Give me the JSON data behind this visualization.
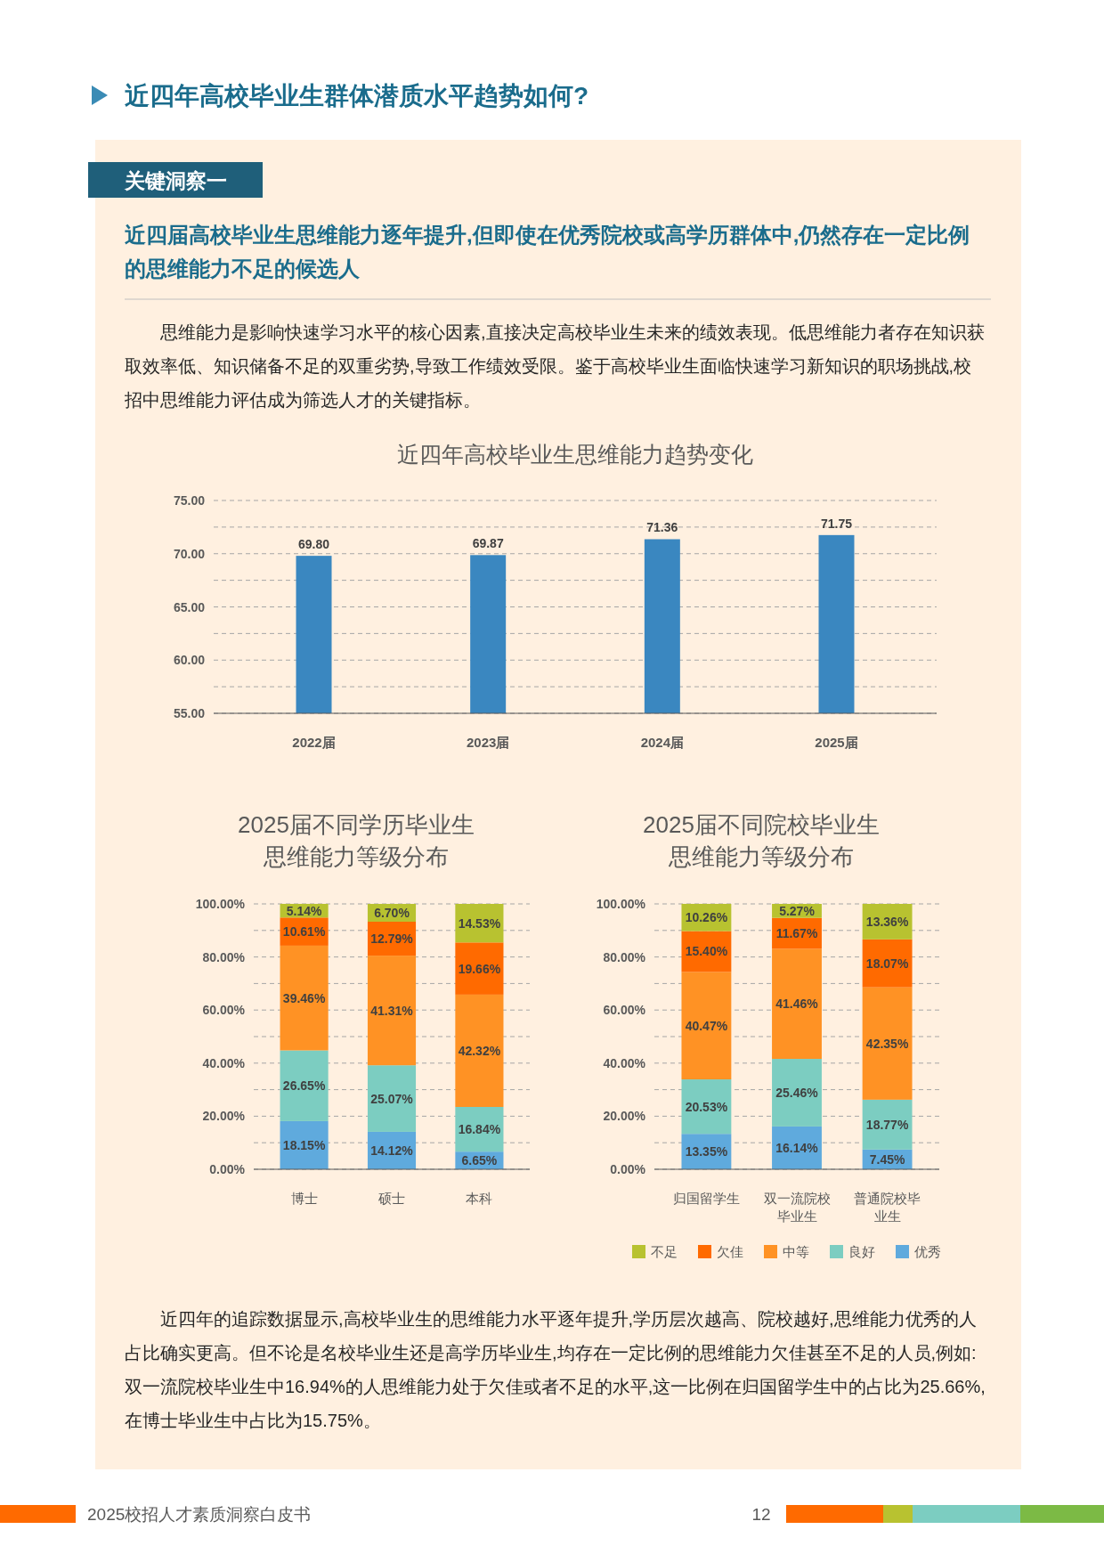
{
  "chart_data": [
    {
      "type": "bar",
      "title": "近四年高校毕业生思维能力趋势变化",
      "categories": [
        "2022届",
        "2023届",
        "2024届",
        "2025届"
      ],
      "values": [
        69.8,
        69.87,
        71.36,
        71.75
      ],
      "value_labels": [
        "69.80",
        "69.87",
        "71.36",
        "71.75"
      ],
      "color": "#3a87c0",
      "ylim": [
        55,
        75
      ],
      "yticks": [
        {
          "value": 55,
          "label": "55.00"
        },
        {
          "value": 57.5,
          "label": null
        },
        {
          "value": 60,
          "label": "60.00"
        },
        {
          "value": 62.5,
          "label": null
        },
        {
          "value": 65,
          "label": "65.00"
        },
        {
          "value": 67.5,
          "label": null
        },
        {
          "value": 70,
          "label": "70.00"
        },
        {
          "value": 72.5,
          "label": null
        },
        {
          "value": 75,
          "label": "75.00"
        }
      ],
      "grid": "y",
      "annotations": [
        "近四年高校毕业生群体潜质水平趋势如何?",
        "关键洞察一",
        "近四届高校毕业生思维能力逐年提升,但即使在优秀院校或高学历群体中,仍然存在一定比例的思维能力不足的候选人",
        "思维能力是影响快速学习水平的核心因素,直接决定高校毕业生未来的绩效表现。低思维能力者存在知识获取效率低、知识储备不足的双重劣势,导致工作绩效受限。鉴于高校毕业生面临快速学习新知识的职场挑战,校招中思维能力评估成为筛选人才的关键指标。",
        "近四年的追踪数据显示,高校毕业生的思维能力水平逐年提升,学历层次越高、院校越好,思维能力优秀的人占比确实更高。但不论是名校毕业生还是高学历毕业生,均存在一定比例的思维能力欠佳甚至不足的人员,例如:双一流院校毕业生中16.94%的人思维能力处于欠佳或者不足的水平,这一比例在归国留学生中的占比为25.66%,在博士毕业生中占比为15.75%。",
        "2025校招人才素质洞察白皮书",
        "12"
      ]
    },
    {
      "type": "bar",
      "stacked": true,
      "title": "2025届不同学历毕业生思维能力等级分布",
      "categories": [
        "博士",
        "硕士",
        "本科"
      ],
      "ylim": [
        0,
        100
      ],
      "yticks": [
        {
          "value": 0,
          "label": "0.00%"
        },
        {
          "value": 10,
          "label": null
        },
        {
          "value": 20,
          "label": "20.00%"
        },
        {
          "value": 30,
          "label": null
        },
        {
          "value": 40,
          "label": "40.00%"
        },
        {
          "value": 50,
          "label": null
        },
        {
          "value": 60,
          "label": "60.00%"
        },
        {
          "value": 70,
          "label": null
        },
        {
          "value": 80,
          "label": "80.00%"
        },
        {
          "value": 90,
          "label": null
        },
        {
          "value": 100,
          "label": "100.00%"
        }
      ],
      "grid": "y",
      "series": [
        {
          "color": "#5faadd",
          "values": [
            18.15,
            14.12,
            6.65
          ],
          "value_labels": [
            "18.15%",
            "14.12%",
            "6.65%"
          ]
        },
        {
          "color": "#7ccdc1",
          "values": [
            26.65,
            25.07,
            16.84
          ],
          "value_labels": [
            "26.65%",
            "25.07%",
            "16.84%"
          ]
        },
        {
          "color": "#ff9224",
          "values": [
            39.46,
            41.31,
            42.32
          ],
          "value_labels": [
            "39.46%",
            "41.31%",
            "42.32%"
          ]
        },
        {
          "color": "#ff6a00",
          "values": [
            10.61,
            12.79,
            19.66
          ],
          "value_labels": [
            "10.61%",
            "12.79%",
            "19.66%"
          ]
        },
        {
          "color": "#b8c230",
          "values": [
            5.14,
            6.7,
            14.53
          ],
          "value_labels": [
            "5.14%",
            "6.70%",
            "14.53%"
          ]
        }
      ]
    },
    {
      "type": "bar",
      "stacked": true,
      "title": "2025届不同院校毕业生思维能力等级分布",
      "categories": [
        "归国留学生",
        "双一流院校毕业生",
        "普通院校毕业生"
      ],
      "ylim": [
        0,
        100
      ],
      "yticks": [
        {
          "value": 0,
          "label": "0.00%"
        },
        {
          "value": 10,
          "label": null
        },
        {
          "value": 20,
          "label": "20.00%"
        },
        {
          "value": 30,
          "label": null
        },
        {
          "value": 40,
          "label": "40.00%"
        },
        {
          "value": 50,
          "label": null
        },
        {
          "value": 60,
          "label": "60.00%"
        },
        {
          "value": 70,
          "label": null
        },
        {
          "value": 80,
          "label": "80.00%"
        },
        {
          "value": 90,
          "label": null
        },
        {
          "value": 100,
          "label": "100.00%"
        }
      ],
      "grid": "y",
      "legend": "bottom",
      "series": [
        {
          "name": "优秀",
          "color": "#5faadd",
          "values": [
            13.35,
            16.14,
            7.45
          ],
          "value_labels": [
            "13.35%",
            "16.14%",
            "7.45%"
          ]
        },
        {
          "name": "良好",
          "color": "#7ccdc1",
          "values": [
            20.53,
            25.46,
            18.77
          ],
          "value_labels": [
            "20.53%",
            "25.46%",
            "18.77%"
          ]
        },
        {
          "name": "中等",
          "color": "#ff9224",
          "values": [
            40.47,
            41.46,
            42.35
          ],
          "value_labels": [
            "40.47%",
            "41.46%",
            "42.35%"
          ]
        },
        {
          "name": "欠佳",
          "color": "#ff6a00",
          "values": [
            15.4,
            11.67,
            18.07
          ],
          "value_labels": [
            "15.40%",
            "11.67%",
            "18.07%"
          ]
        },
        {
          "name": "不足",
          "color": "#b8c230",
          "values": [
            10.26,
            5.27,
            13.36
          ],
          "value_labels": [
            "10.26%",
            "5.27%",
            "13.36%"
          ]
        }
      ]
    }
  ]
}
